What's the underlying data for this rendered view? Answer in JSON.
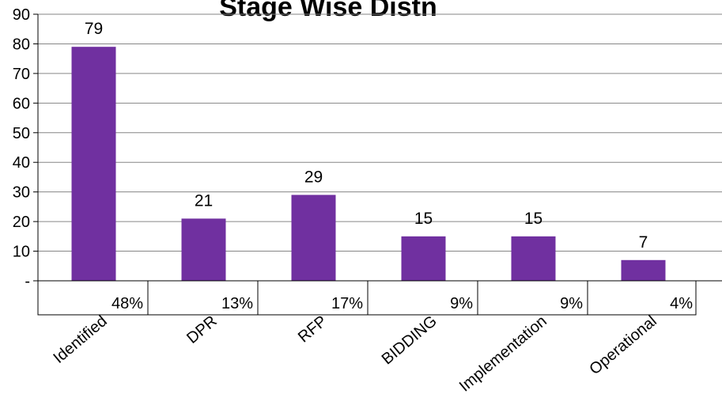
{
  "chart_data": {
    "type": "bar",
    "title": "Stage Wise Distn",
    "categories": [
      "Identified",
      "DPR",
      "RFP",
      "BIDDING",
      "Implementation",
      "Operational"
    ],
    "values": [
      79,
      21,
      29,
      15,
      15,
      7
    ],
    "percent_labels": [
      "48%",
      "13%",
      "17%",
      "9%",
      "9%",
      "4%"
    ],
    "y_tick_labels": [
      "-",
      "10",
      "20",
      "30",
      "40",
      "50",
      "60",
      "70",
      "80",
      "90"
    ],
    "ylim": [
      0,
      90
    ],
    "grid": true,
    "bar_color": "#7030A0",
    "gridline_color": "#868686"
  }
}
